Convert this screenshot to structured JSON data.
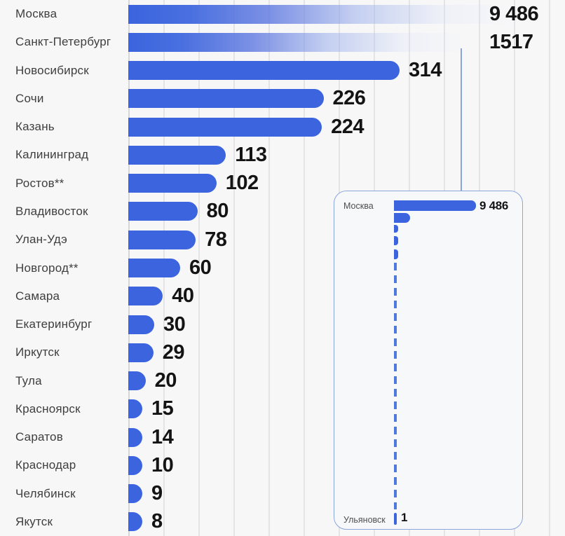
{
  "chart_data": {
    "type": "bar",
    "orientation": "horizontal",
    "title": "",
    "legend": "none",
    "grid": "vertical-lines, unlabeled",
    "rows": [
      {
        "label": "Москва",
        "value": 9486,
        "display": "9 486",
        "offscale": true
      },
      {
        "label": "Санкт-Петербург",
        "value": 1517,
        "display": "1517",
        "offscale": true
      },
      {
        "label": "Новосибирск",
        "value": 314,
        "display": "314",
        "offscale": false
      },
      {
        "label": "Сочи",
        "value": 226,
        "display": "226",
        "offscale": false
      },
      {
        "label": "Казань",
        "value": 224,
        "display": "224",
        "offscale": false
      },
      {
        "label": "Калининград",
        "value": 113,
        "display": "113",
        "offscale": false
      },
      {
        "label": "Ростов**",
        "value": 102,
        "display": "102",
        "offscale": false
      },
      {
        "label": "Владивосток",
        "value": 80,
        "display": "80",
        "offscale": false
      },
      {
        "label": "Улан-Удэ",
        "value": 78,
        "display": "78",
        "offscale": false
      },
      {
        "label": "Новгород**",
        "value": 60,
        "display": "60",
        "offscale": false
      },
      {
        "label": "Самара",
        "value": 40,
        "display": "40",
        "offscale": false
      },
      {
        "label": "Екатеринбург",
        "value": 30,
        "display": "30",
        "offscale": false
      },
      {
        "label": "Иркутск",
        "value": 29,
        "display": "29",
        "offscale": false
      },
      {
        "label": "Тула",
        "value": 20,
        "display": "20",
        "offscale": false
      },
      {
        "label": "Красноярск",
        "value": 15,
        "display": "15",
        "offscale": false
      },
      {
        "label": "Саратов",
        "value": 14,
        "display": "14",
        "offscale": false
      },
      {
        "label": "Краснодар",
        "value": 10,
        "display": "10",
        "offscale": false
      },
      {
        "label": "Челябинск",
        "value": 9,
        "display": "9",
        "offscale": false
      },
      {
        "label": "Якутск",
        "value": 8,
        "display": "8",
        "offscale": false
      }
    ],
    "inset": {
      "purpose": "same data at true linear scale; middle values collapse into a dashed line",
      "top": {
        "label": "Москва",
        "value": 9486,
        "display": "9 486"
      },
      "second": {
        "label": "Санкт-Петербург",
        "value": 1517
      },
      "bottom": {
        "label": "Ульяновск",
        "value": 1,
        "display": "1"
      }
    }
  },
  "colors": {
    "bar": "#3B64DE",
    "value_text": "#141414",
    "label_text": "#3E3E3E",
    "background": "#F7F7F8",
    "gridline": "#E4E4E8",
    "inset_border": "#8BA6DC",
    "dash_line": "#4F79DD"
  }
}
